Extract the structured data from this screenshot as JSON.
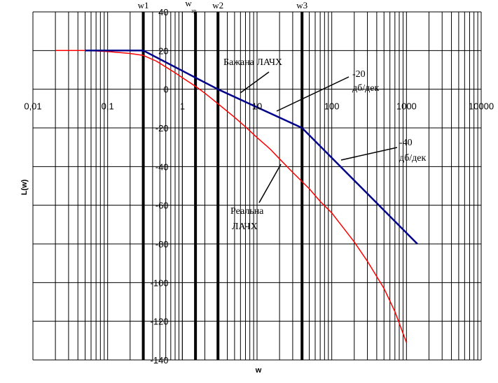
{
  "chart_data": {
    "type": "line",
    "title": "",
    "xlabel": "w",
    "ylabel": "L(w)",
    "xscale": "log",
    "xlim": [
      0.01,
      10000
    ],
    "ylim": [
      -140,
      40
    ],
    "x_tick_labels": [
      "0,01",
      "0,1",
      "1",
      "10",
      "100",
      "1000",
      "10000"
    ],
    "y_tick_labels": [
      "40",
      "20",
      "0",
      "-20",
      "-40",
      "-60",
      "-80",
      "-100",
      "-120",
      "-140"
    ],
    "grid": true,
    "colors": {
      "real": "#ff0000",
      "desired": "#00008b",
      "grid": "#000000",
      "markers": "#000000"
    },
    "series": [
      {
        "name": "Реальна ЛАЧХ",
        "color": "#ff0000",
        "x": [
          0.02,
          0.05,
          0.1,
          0.2,
          0.3,
          0.45,
          0.6,
          0.8,
          1.0,
          1.5,
          2.0,
          3.0,
          5.0,
          7.0,
          10.0,
          15.0,
          20.0,
          30.0,
          50.0,
          70.0,
          100.0,
          200.0,
          300.0,
          500.0,
          700.0,
          1000.0
        ],
        "y": [
          20,
          20,
          19.5,
          18.5,
          17.5,
          14.5,
          11.5,
          8.5,
          6,
          1.5,
          -2,
          -7.5,
          -14.5,
          -19.5,
          -25,
          -31,
          -36,
          -43,
          -51.5,
          -58,
          -64,
          -79,
          -89,
          -103,
          -115,
          -131
        ]
      },
      {
        "name": "Бажана ЛАЧХ",
        "color": "#00008b",
        "x": [
          0.05,
          0.3,
          1.5,
          3.0,
          40.0,
          1400.0
        ],
        "y": [
          20,
          20,
          6,
          0,
          -20,
          -80
        ]
      }
    ],
    "vertical_markers": [
      {
        "label": "w1",
        "x": 0.3
      },
      {
        "label": "w",
        "sub": "зр",
        "x": 1.5
      },
      {
        "label": "w2",
        "x": 3.0
      },
      {
        "label": "w3",
        "x": 40.0
      }
    ],
    "annotations": [
      {
        "lines": [
          "Бажана ЛАЧХ"
        ],
        "point_x": 8.0,
        "point_y": -2
      },
      {
        "lines": [
          "-20",
          "дб/дек"
        ],
        "point_x": 15.0,
        "point_y": -11
      },
      {
        "lines": [
          "-40",
          "дб/дек"
        ],
        "point_x": 110.0,
        "point_y": -37
      },
      {
        "lines": [
          "Реальна",
          "ЛАЧХ"
        ],
        "point_x": 25.0,
        "point_y": -39
      }
    ]
  }
}
